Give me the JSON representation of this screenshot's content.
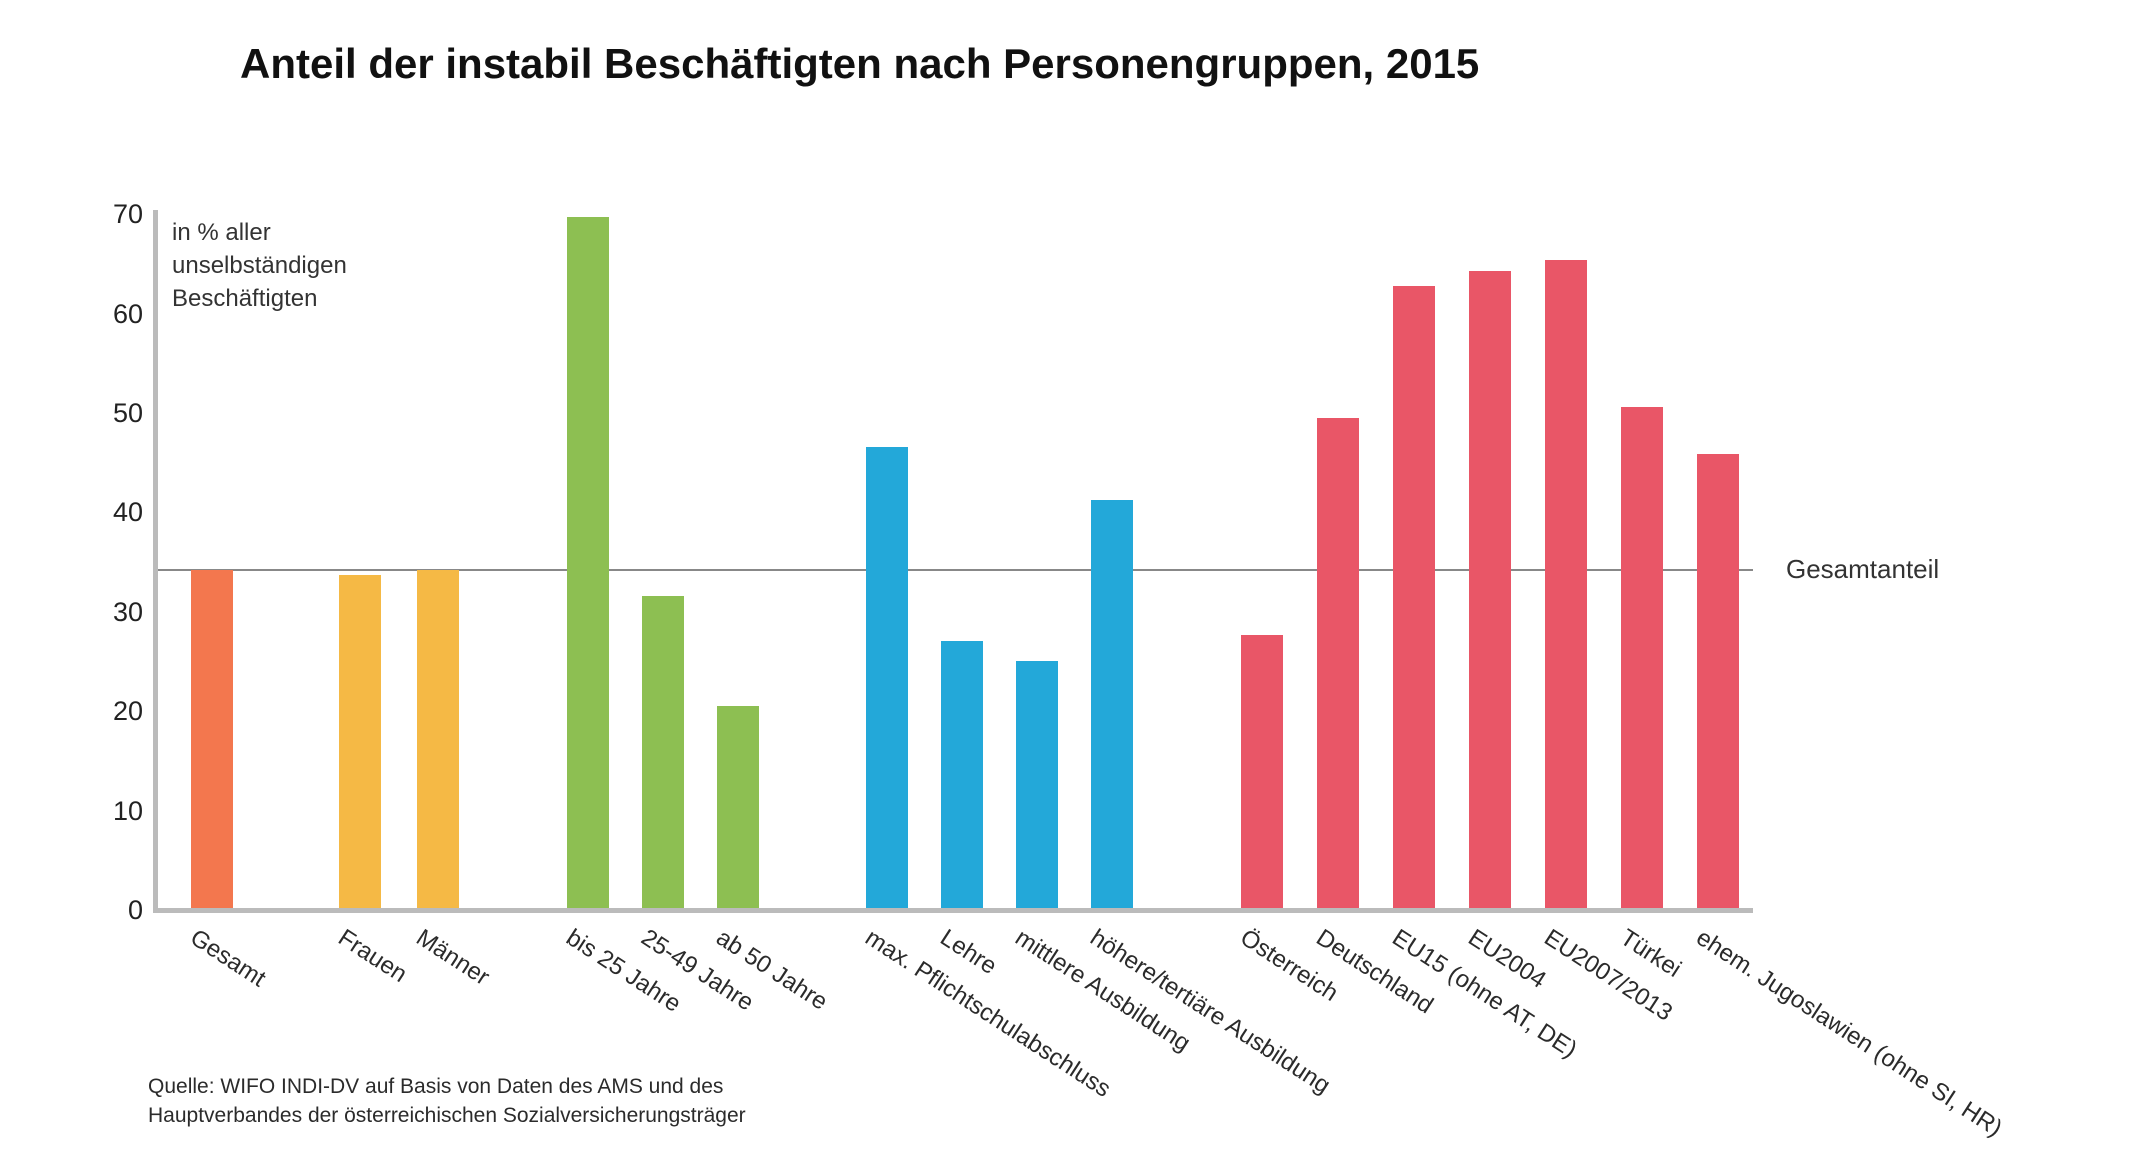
{
  "chart_data": {
    "type": "bar",
    "title": "Anteil der instabil Beschäftigten nach Personengruppen, 2015",
    "unit_label_lines": [
      "in % aller",
      "unselbständigen",
      "Beschäftigten"
    ],
    "ylabel": "in % aller unselbständigen Beschäftigten",
    "ylim": [
      0,
      70
    ],
    "yticks": [
      0,
      10,
      20,
      30,
      40,
      50,
      60,
      70
    ],
    "grid": "off",
    "reference_line": {
      "value": 34.3,
      "label": "Gesamtanteil"
    },
    "groups": [
      {
        "name": "gesamt",
        "color": "#F3774E",
        "bars": [
          {
            "label": "Gesamt",
            "value": 34.2
          }
        ]
      },
      {
        "name": "geschlecht",
        "color": "#F5B945",
        "bars": [
          {
            "label": "Frauen",
            "value": 33.7
          },
          {
            "label": "Männer",
            "value": 34.2
          }
        ]
      },
      {
        "name": "alter",
        "color": "#8DBF52",
        "bars": [
          {
            "label": "bis 25 Jahre",
            "value": 69.7
          },
          {
            "label": "25-49 Jahre",
            "value": 31.6
          },
          {
            "label": "ab 50 Jahre",
            "value": 20.5
          }
        ]
      },
      {
        "name": "ausbildung",
        "color": "#23A8D9",
        "bars": [
          {
            "label": "max. Pflichtschulabschluss",
            "value": 46.6
          },
          {
            "label": "Lehre",
            "value": 27.1
          },
          {
            "label": "mittlere Ausbildung",
            "value": 25.1
          },
          {
            "label": "höhere/tertiäre Ausbildung",
            "value": 41.2
          }
        ]
      },
      {
        "name": "herkunft",
        "color": "#E95667",
        "bars": [
          {
            "label": "Österreich",
            "value": 27.7
          },
          {
            "label": "Deutschland",
            "value": 49.5
          },
          {
            "label": "EU15 (ohne AT, DE)",
            "value": 62.8
          },
          {
            "label": "EU2004",
            "value": 64.3
          },
          {
            "label": "EU2007/2013",
            "value": 65.4
          },
          {
            "label": "Türkei",
            "value": 50.6
          },
          {
            "label": "ehem. Jugoslawien (ohne SI, HR)",
            "value": 45.9
          }
        ]
      }
    ],
    "source_lines": [
      "Quelle: WIFO INDI-DV auf Basis von Daten des AMS und des",
      "Hauptverbandes der österreichischen Sozialversicherungsträger"
    ],
    "colors": {
      "axis": "#BBBBBB",
      "reference_line": "#888888",
      "text": "#2B2B2B"
    }
  }
}
